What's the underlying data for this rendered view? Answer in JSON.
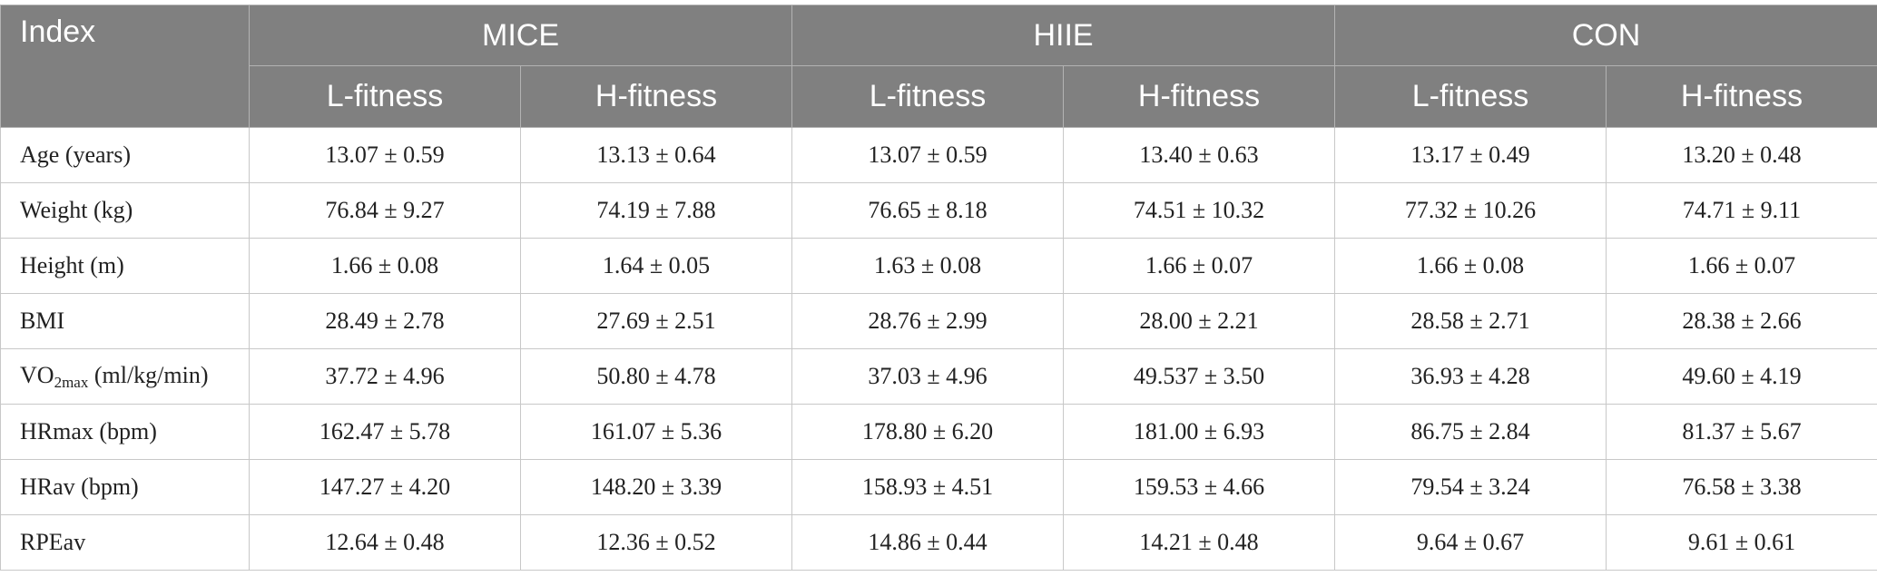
{
  "header": {
    "index_label": "Index",
    "groups": [
      "MICE",
      "HIIE",
      "CON"
    ],
    "subgroups": [
      "L-fitness",
      "H-fitness",
      "L-fitness",
      "H-fitness",
      "L-fitness",
      "H-fitness"
    ]
  },
  "rows": [
    {
      "label": "Age (years)",
      "values": [
        "13.07 ± 0.59",
        "13.13 ± 0.64",
        "13.07 ± 0.59",
        "13.40 ± 0.63",
        "13.17 ± 0.49",
        "13.20 ± 0.48"
      ]
    },
    {
      "label": "Weight (kg)",
      "values": [
        "76.84 ± 9.27",
        "74.19 ± 7.88",
        "76.65 ± 8.18",
        "74.51 ± 10.32",
        "77.32 ± 10.26",
        "74.71 ± 9.11"
      ]
    },
    {
      "label": "Height (m)",
      "values": [
        "1.66 ± 0.08",
        "1.64 ± 0.05",
        "1.63 ± 0.08",
        "1.66 ± 0.07",
        "1.66 ± 0.08",
        "1.66 ± 0.07"
      ]
    },
    {
      "label": "BMI",
      "values": [
        "28.49 ± 2.78",
        "27.69 ± 2.51",
        "28.76 ± 2.99",
        "28.00 ± 2.21",
        "28.58 ± 2.71",
        "28.38 ± 2.66"
      ]
    },
    {
      "label_prefix": "VO",
      "label_sub": "2max",
      "label_suffix": " (ml/kg/min)",
      "values": [
        "37.72 ± 4.96",
        "50.80 ± 4.78",
        "37.03 ± 4.96",
        "49.537 ± 3.50",
        "36.93 ± 4.28",
        "49.60 ± 4.19"
      ]
    },
    {
      "label": "HRmax (bpm)",
      "values": [
        "162.47 ± 5.78",
        "161.07 ± 5.36",
        "178.80 ± 6.20",
        "181.00 ± 6.93",
        "86.75 ± 2.84",
        "81.37 ± 5.67"
      ]
    },
    {
      "label": "HRav (bpm)",
      "values": [
        "147.27 ± 4.20",
        "148.20 ± 3.39",
        "158.93 ± 4.51",
        "159.53 ± 4.66",
        "79.54 ± 3.24",
        "76.58 ± 3.38"
      ]
    },
    {
      "label": "RPEav",
      "values": [
        "12.64 ± 0.48",
        "12.36 ± 0.52",
        "14.86 ± 0.44",
        "14.21 ± 0.48",
        "9.64 ± 0.67",
        "9.61 ± 0.61"
      ]
    }
  ],
  "colors": {
    "header_bg": "#808080",
    "header_text": "#ffffff",
    "body_text": "#222222",
    "grid": "#c8c8c8"
  }
}
